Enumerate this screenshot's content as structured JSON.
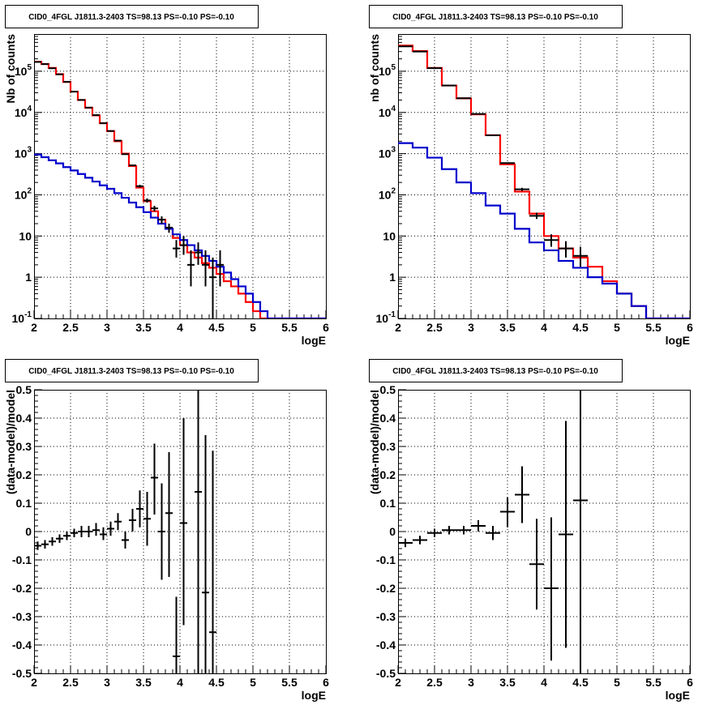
{
  "chart_data": [
    {
      "type": "line",
      "title": "CID0_4FGL J1811.3-2403 TS=98.13 PS=-0.10 PS=-0.10",
      "xlabel": "logE",
      "ylabel": "Nb of counts",
      "xlim": [
        2,
        6
      ],
      "ylim": [
        0.1,
        800000
      ],
      "yscale": "log",
      "grid": true,
      "x_ticks": [
        "2",
        "2.5",
        "3",
        "3.5",
        "4",
        "4.5",
        "5",
        "5.5",
        "6"
      ],
      "y_ticks": [
        "10^-1",
        "1",
        "10",
        "10^2",
        "10^3",
        "10^4",
        "10^5"
      ],
      "bin_edges": [
        2.0,
        2.1,
        2.2,
        2.3,
        2.4,
        2.5,
        2.6,
        2.7,
        2.8,
        2.9,
        3.0,
        3.1,
        3.2,
        3.3,
        3.4,
        3.5,
        3.6,
        3.7,
        3.8,
        3.9,
        4.0,
        4.1,
        4.2,
        4.3,
        4.4,
        4.5,
        4.6,
        4.7,
        4.8,
        4.9,
        5.0,
        5.1,
        5.2,
        5.3,
        5.4,
        5.5,
        5.6,
        5.7,
        5.8,
        5.9,
        6.0
      ],
      "series": [
        {
          "color": "#ff0000",
          "style": "step",
          "values": [
            170000,
            150000,
            120000,
            85000,
            55000,
            32000,
            20000,
            13000,
            8500,
            5500,
            3500,
            2000,
            1000,
            500,
            150,
            70,
            40,
            25,
            15,
            9,
            6,
            4,
            3,
            2.2,
            1.7,
            1.2,
            0.8,
            0.6,
            0.4,
            0.25,
            0.15,
            0.1,
            0.1,
            0.1,
            0.1,
            0.1,
            0.1,
            0.1,
            0.1,
            0.1
          ]
        },
        {
          "color": "#0000cc",
          "style": "step",
          "values": [
            950,
            820,
            690,
            580,
            470,
            390,
            320,
            260,
            210,
            170,
            140,
            110,
            85,
            65,
            50,
            38,
            28,
            20,
            15,
            11,
            8,
            6,
            4.5,
            3.3,
            2.5,
            1.8,
            1.3,
            0.9,
            0.6,
            0.4,
            0.25,
            0.15,
            0.1,
            0.1,
            0.1,
            0.1,
            0.1,
            0.1,
            0.1,
            0.1
          ]
        },
        {
          "color": "#000000",
          "style": "errorbar",
          "points": [
            {
              "x": 2.05,
              "y": 168000,
              "lo": 167000,
              "hi": 169000
            },
            {
              "x": 2.15,
              "y": 149000,
              "lo": 148000,
              "hi": 150000
            },
            {
              "x": 2.25,
              "y": 118000,
              "lo": 117000,
              "hi": 119000
            },
            {
              "x": 2.35,
              "y": 84000,
              "lo": 83500,
              "hi": 84500
            },
            {
              "x": 2.45,
              "y": 55500,
              "lo": 55000,
              "hi": 56000
            },
            {
              "x": 2.55,
              "y": 32000,
              "lo": 31800,
              "hi": 32200
            },
            {
              "x": 2.65,
              "y": 20100,
              "lo": 19900,
              "hi": 20300
            },
            {
              "x": 2.75,
              "y": 13100,
              "lo": 12900,
              "hi": 13300
            },
            {
              "x": 2.85,
              "y": 8600,
              "lo": 8500,
              "hi": 8700
            },
            {
              "x": 2.95,
              "y": 5470,
              "lo": 5400,
              "hi": 5540
            },
            {
              "x": 3.05,
              "y": 3550,
              "lo": 3490,
              "hi": 3610
            },
            {
              "x": 3.15,
              "y": 2070,
              "lo": 2020,
              "hi": 2120
            },
            {
              "x": 3.25,
              "y": 970,
              "lo": 940,
              "hi": 1000
            },
            {
              "x": 3.35,
              "y": 520,
              "lo": 500,
              "hi": 540
            },
            {
              "x": 3.45,
              "y": 162,
              "lo": 150,
              "hi": 175
            },
            {
              "x": 3.55,
              "y": 73,
              "lo": 65,
              "hi": 82
            },
            {
              "x": 3.65,
              "y": 47,
              "lo": 40,
              "hi": 54
            },
            {
              "x": 3.75,
              "y": 25,
              "lo": 20,
              "hi": 30
            },
            {
              "x": 3.85,
              "y": 16,
              "lo": 12,
              "hi": 20
            },
            {
              "x": 3.95,
              "y": 5,
              "lo": 3,
              "hi": 8
            },
            {
              "x": 4.05,
              "y": 6,
              "lo": 3.5,
              "hi": 10
            },
            {
              "x": 4.15,
              "y": 2,
              "lo": 0.6,
              "hi": 4.5
            },
            {
              "x": 4.25,
              "y": 4,
              "lo": 2,
              "hi": 7
            },
            {
              "x": 4.35,
              "y": 2,
              "lo": 0.6,
              "hi": 4.5
            },
            {
              "x": 4.45,
              "y": 1,
              "lo": 0.1,
              "hi": 3
            },
            {
              "x": 4.55,
              "y": 2,
              "lo": 0.6,
              "hi": 4.5
            }
          ]
        }
      ]
    },
    {
      "type": "line",
      "title": "CID0_4FGL J1811.3-2403 TS=98.13 PS=-0.10 PS=-0.10",
      "xlabel": "logE",
      "ylabel": "nb of counts",
      "xlim": [
        2,
        6
      ],
      "ylim": [
        0.1,
        800000
      ],
      "yscale": "log",
      "grid": true,
      "x_ticks": [
        "2",
        "2.5",
        "3",
        "3.5",
        "4",
        "4.5",
        "5",
        "5.5",
        "6"
      ],
      "y_ticks": [
        "10^-1",
        "1",
        "10",
        "10^2",
        "10^3",
        "10^4",
        "10^5"
      ],
      "bin_edges": [
        2.0,
        2.2,
        2.4,
        2.6,
        2.8,
        3.0,
        3.2,
        3.4,
        3.6,
        3.8,
        4.0,
        4.2,
        4.4,
        4.6,
        4.8,
        5.0,
        5.2,
        5.4,
        5.6,
        5.8,
        6.0
      ],
      "series": [
        {
          "color": "#ff0000",
          "style": "step",
          "values": [
            420000,
            310000,
            120000,
            45000,
            22000,
            9000,
            2800,
            550,
            120,
            35,
            10,
            5,
            3,
            1.8,
            0.8,
            0.4,
            0.2,
            0.1,
            0.1,
            0.1
          ]
        },
        {
          "color": "#0000cc",
          "style": "step",
          "values": [
            1800,
            1400,
            800,
            420,
            200,
            110,
            55,
            35,
            15,
            7,
            4.5,
            2.5,
            1.7,
            1.0,
            0.7,
            0.4,
            0.2,
            0.1,
            0.1,
            0.1
          ]
        },
        {
          "color": "#000000",
          "style": "errorbar",
          "points": [
            {
              "x": 2.1,
              "y": 400000,
              "lo": 398000,
              "hi": 402000
            },
            {
              "x": 2.3,
              "y": 300000,
              "lo": 298000,
              "hi": 302000
            },
            {
              "x": 2.5,
              "y": 119000,
              "lo": 118000,
              "hi": 120000
            },
            {
              "x": 2.7,
              "y": 45200,
              "lo": 44900,
              "hi": 45500
            },
            {
              "x": 2.9,
              "y": 22100,
              "lo": 21900,
              "hi": 22300
            },
            {
              "x": 3.1,
              "y": 9200,
              "lo": 9100,
              "hi": 9300
            },
            {
              "x": 3.3,
              "y": 2780,
              "lo": 2730,
              "hi": 2830
            },
            {
              "x": 3.5,
              "y": 590,
              "lo": 565,
              "hi": 615
            },
            {
              "x": 3.7,
              "y": 136,
              "lo": 124,
              "hi": 148
            },
            {
              "x": 3.9,
              "y": 31,
              "lo": 26,
              "hi": 37
            },
            {
              "x": 4.1,
              "y": 8,
              "lo": 5.5,
              "hi": 11
            },
            {
              "x": 4.3,
              "y": 5,
              "lo": 3,
              "hi": 7.5
            },
            {
              "x": 4.5,
              "y": 3.3,
              "lo": 1.8,
              "hi": 5.5
            }
          ]
        }
      ]
    },
    {
      "type": "scatter",
      "title": "CID0_4FGL J1811.3-2403 TS=98.13 PS=-0.10 PS=-0.10",
      "xlabel": "logE",
      "ylabel": "(data-model)/model",
      "xlim": [
        2,
        6
      ],
      "ylim": [
        -0.5,
        0.5
      ],
      "grid": true,
      "x_ticks": [
        "2",
        "2.5",
        "3",
        "3.5",
        "4",
        "4.5",
        "5",
        "5.5",
        "6"
      ],
      "y_ticks": [
        "-0.5",
        "-0.4",
        "-0.3",
        "-0.2",
        "-0.1",
        "0",
        "0.1",
        "0.2",
        "0.3",
        "0.4",
        "0.5"
      ],
      "xerr": 0.05,
      "points": [
        {
          "x": 2.05,
          "y": -0.05,
          "lo": -0.065,
          "hi": -0.035
        },
        {
          "x": 2.15,
          "y": -0.045,
          "lo": -0.06,
          "hi": -0.03
        },
        {
          "x": 2.25,
          "y": -0.035,
          "lo": -0.05,
          "hi": -0.02
        },
        {
          "x": 2.35,
          "y": -0.025,
          "lo": -0.04,
          "hi": -0.01
        },
        {
          "x": 2.45,
          "y": -0.015,
          "lo": -0.03,
          "hi": 0.0
        },
        {
          "x": 2.55,
          "y": -0.005,
          "lo": -0.02,
          "hi": 0.01
        },
        {
          "x": 2.65,
          "y": 0.0,
          "lo": -0.02,
          "hi": 0.02
        },
        {
          "x": 2.75,
          "y": 0.0,
          "lo": -0.02,
          "hi": 0.02
        },
        {
          "x": 2.85,
          "y": 0.005,
          "lo": -0.015,
          "hi": 0.03
        },
        {
          "x": 2.95,
          "y": -0.01,
          "lo": -0.03,
          "hi": 0.015
        },
        {
          "x": 3.05,
          "y": 0.01,
          "lo": -0.015,
          "hi": 0.035
        },
        {
          "x": 3.15,
          "y": 0.035,
          "lo": 0.005,
          "hi": 0.065
        },
        {
          "x": 3.25,
          "y": -0.03,
          "lo": -0.06,
          "hi": 0.0
        },
        {
          "x": 3.35,
          "y": 0.04,
          "lo": 0.0,
          "hi": 0.08
        },
        {
          "x": 3.45,
          "y": 0.08,
          "lo": 0.015,
          "hi": 0.145
        },
        {
          "x": 3.55,
          "y": 0.045,
          "lo": -0.05,
          "hi": 0.14
        },
        {
          "x": 3.65,
          "y": 0.19,
          "lo": 0.06,
          "hi": 0.31
        },
        {
          "x": 3.75,
          "y": 0.0,
          "lo": -0.17,
          "hi": 0.17
        },
        {
          "x": 3.85,
          "y": 0.065,
          "lo": -0.16,
          "hi": 0.28
        },
        {
          "x": 3.95,
          "y": -0.44,
          "lo": -0.5,
          "hi": -0.23
        },
        {
          "x": 4.05,
          "y": 0.03,
          "lo": -0.33,
          "hi": 0.4
        },
        {
          "x": 4.25,
          "y": 0.14,
          "lo": -0.5,
          "hi": 0.5
        },
        {
          "x": 4.35,
          "y": -0.215,
          "lo": -0.5,
          "hi": 0.34
        },
        {
          "x": 4.45,
          "y": -0.355,
          "lo": -0.5,
          "hi": 0.285
        }
      ]
    },
    {
      "type": "scatter",
      "title": "CID0_4FGL J1811.3-2403 TS=98.13 PS=-0.10 PS=-0.10",
      "xlabel": "logE",
      "ylabel": "(data-model)/model",
      "xlim": [
        2,
        6
      ],
      "ylim": [
        -0.5,
        0.5
      ],
      "grid": true,
      "x_ticks": [
        "2",
        "2.5",
        "3",
        "3.5",
        "4",
        "4.5",
        "5",
        "5.5",
        "6"
      ],
      "y_ticks": [
        "-0.5",
        "-0.4",
        "-0.3",
        "-0.2",
        "-0.1",
        "0",
        "0.1",
        "0.2",
        "0.3",
        "0.4",
        "0.5"
      ],
      "xerr": 0.1,
      "points": [
        {
          "x": 2.1,
          "y": -0.04,
          "lo": -0.055,
          "hi": -0.025
        },
        {
          "x": 2.3,
          "y": -0.03,
          "lo": -0.045,
          "hi": -0.015
        },
        {
          "x": 2.5,
          "y": -0.005,
          "lo": -0.02,
          "hi": 0.01
        },
        {
          "x": 2.7,
          "y": 0.005,
          "lo": -0.01,
          "hi": 0.02
        },
        {
          "x": 2.9,
          "y": 0.005,
          "lo": -0.01,
          "hi": 0.02
        },
        {
          "x": 3.1,
          "y": 0.02,
          "lo": 0.0,
          "hi": 0.04
        },
        {
          "x": 3.3,
          "y": -0.005,
          "lo": -0.03,
          "hi": 0.02
        },
        {
          "x": 3.5,
          "y": 0.07,
          "lo": 0.015,
          "hi": 0.12
        },
        {
          "x": 3.7,
          "y": 0.13,
          "lo": 0.03,
          "hi": 0.23
        },
        {
          "x": 3.9,
          "y": -0.115,
          "lo": -0.275,
          "hi": 0.045
        },
        {
          "x": 4.1,
          "y": -0.2,
          "lo": -0.455,
          "hi": 0.05
        },
        {
          "x": 4.3,
          "y": -0.01,
          "lo": -0.41,
          "hi": 0.39
        },
        {
          "x": 4.5,
          "y": 0.11,
          "lo": -0.5,
          "hi": 0.5
        }
      ]
    }
  ]
}
